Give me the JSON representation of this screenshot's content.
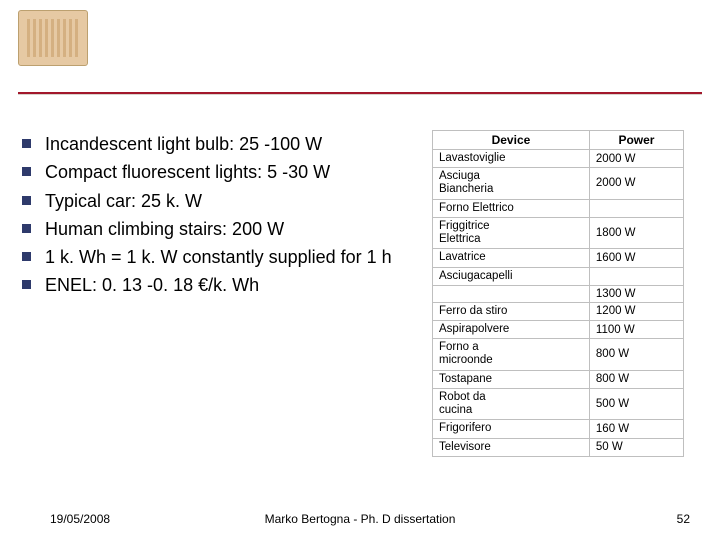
{
  "bullets": [
    "Incandescent light bulb: 25 -100 W",
    "Compact fluorescent lights: 5 -30 W",
    "Typical car: 25 k. W",
    "Human climbing stairs: 200 W",
    "1 k. Wh = 1 k. W constantly supplied for 1 h",
    "ENEL: 0. 13 -0. 18 €/k. Wh"
  ],
  "table": {
    "headers": [
      "Device",
      "Power"
    ],
    "rows": [
      {
        "device": "Lavastoviglie",
        "power": "2000 W",
        "blank": false
      },
      {
        "device": "Asciuga\nBiancheria",
        "power": "2000 W",
        "blank": false
      },
      {
        "device": "Forno Elettrico",
        "power": "",
        "blank": true
      },
      {
        "device": "Friggitrice\nElettrica",
        "power": "1800 W",
        "blank": false
      },
      {
        "device": "Lavatrice",
        "power": "1600 W",
        "blank": false
      },
      {
        "device": "Asciugacapelli",
        "power": "",
        "blank": false
      },
      {
        "device": "",
        "power": "1300 W",
        "blank": false
      },
      {
        "device": "Ferro da stiro",
        "power": "1200 W",
        "blank": false
      },
      {
        "device": "Aspirapolvere",
        "power": "1100 W",
        "blank": false
      },
      {
        "device": "Forno a\nmicroonde",
        "power": "800 W",
        "blank": false
      },
      {
        "device": "Tostapane",
        "power": "800 W",
        "blank": false
      },
      {
        "device": "Robot da\ncucina",
        "power": "500 W",
        "blank": false
      },
      {
        "device": "Frigorifero",
        "power": "160 W",
        "blank": false
      },
      {
        "device": "Televisore",
        "power": "50 W",
        "blank": false
      }
    ]
  },
  "footer": {
    "date": "19/05/2008",
    "center": "Marko Bertogna - Ph. D dissertation",
    "page": "52"
  },
  "colors": {
    "rule": "#a2172c",
    "bullet": "#2e3a6b",
    "table_border": "#bfbfbf"
  }
}
